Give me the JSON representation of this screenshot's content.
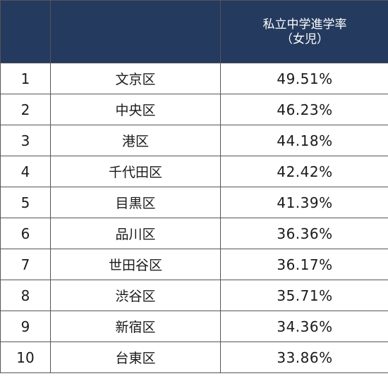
{
  "table": {
    "headers": {
      "rank": "",
      "ward": "",
      "rate_line1": "私立中学進学率",
      "rate_line2": "（女児）"
    },
    "rows": [
      {
        "rank": "1",
        "ward": "文京区",
        "rate": "49.51%"
      },
      {
        "rank": "2",
        "ward": "中央区",
        "rate": "46.23%"
      },
      {
        "rank": "3",
        "ward": "港区",
        "rate": "44.18%"
      },
      {
        "rank": "4",
        "ward": "千代田区",
        "rate": "42.42%"
      },
      {
        "rank": "5",
        "ward": "目黒区",
        "rate": "41.39%"
      },
      {
        "rank": "6",
        "ward": "品川区",
        "rate": "36.36%"
      },
      {
        "rank": "7",
        "ward": "世田谷区",
        "rate": "36.17%"
      },
      {
        "rank": "8",
        "ward": "渋谷区",
        "rate": "35.71%"
      },
      {
        "rank": "9",
        "ward": "新宿区",
        "rate": "34.36%"
      },
      {
        "rank": "10",
        "ward": "台東区",
        "rate": "33.86%"
      }
    ]
  },
  "colors": {
    "header_background": "#243a5e",
    "header_text": "#ffffff",
    "border": "#555555"
  }
}
